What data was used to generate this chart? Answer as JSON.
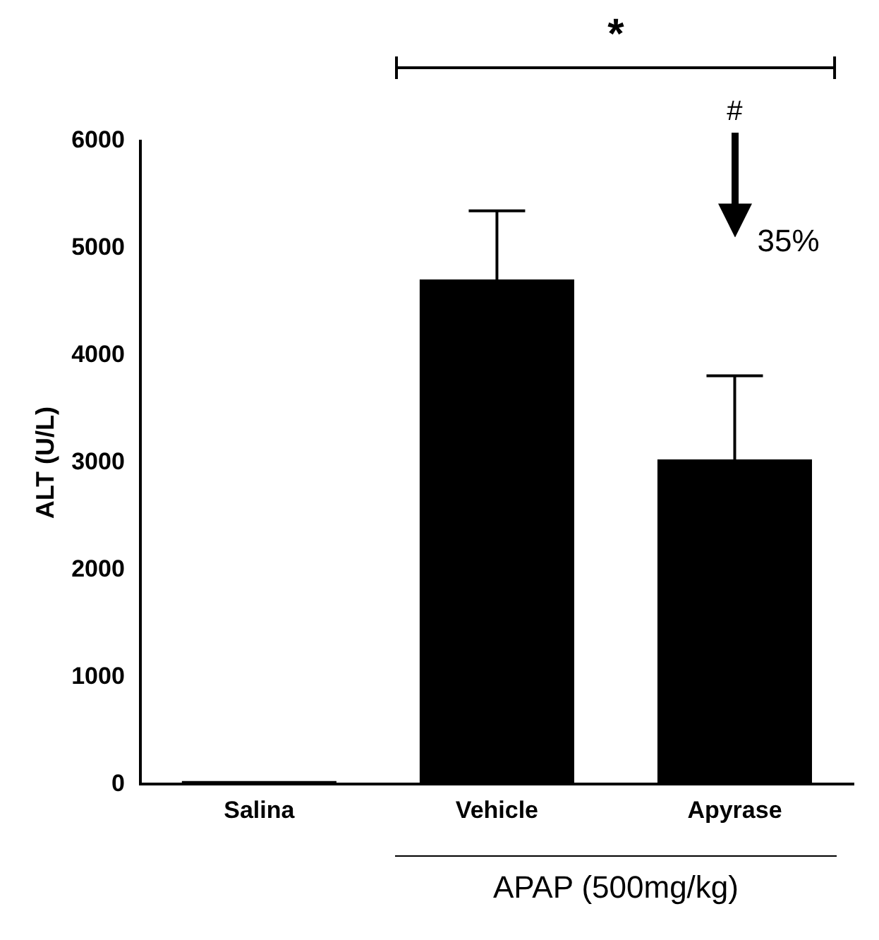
{
  "chart_data": {
    "type": "bar",
    "ylabel": "ALT (U/L)",
    "categories": [
      "Salina",
      "Vehicle",
      "Apyrase"
    ],
    "values": [
      30,
      4710,
      3030
    ],
    "color": "#000000",
    "errors": [
      null,
      [
        4710,
        5350
      ],
      [
        3030,
        3810
      ]
    ],
    "ylim": [
      0,
      6000
    ],
    "yticks": [
      0,
      1000,
      2000,
      3000,
      4000,
      5000,
      6000
    ],
    "grid": false,
    "legend": false,
    "annotations": [
      "*",
      "#",
      "35%",
      "APAP (500mg/kg)"
    ]
  }
}
